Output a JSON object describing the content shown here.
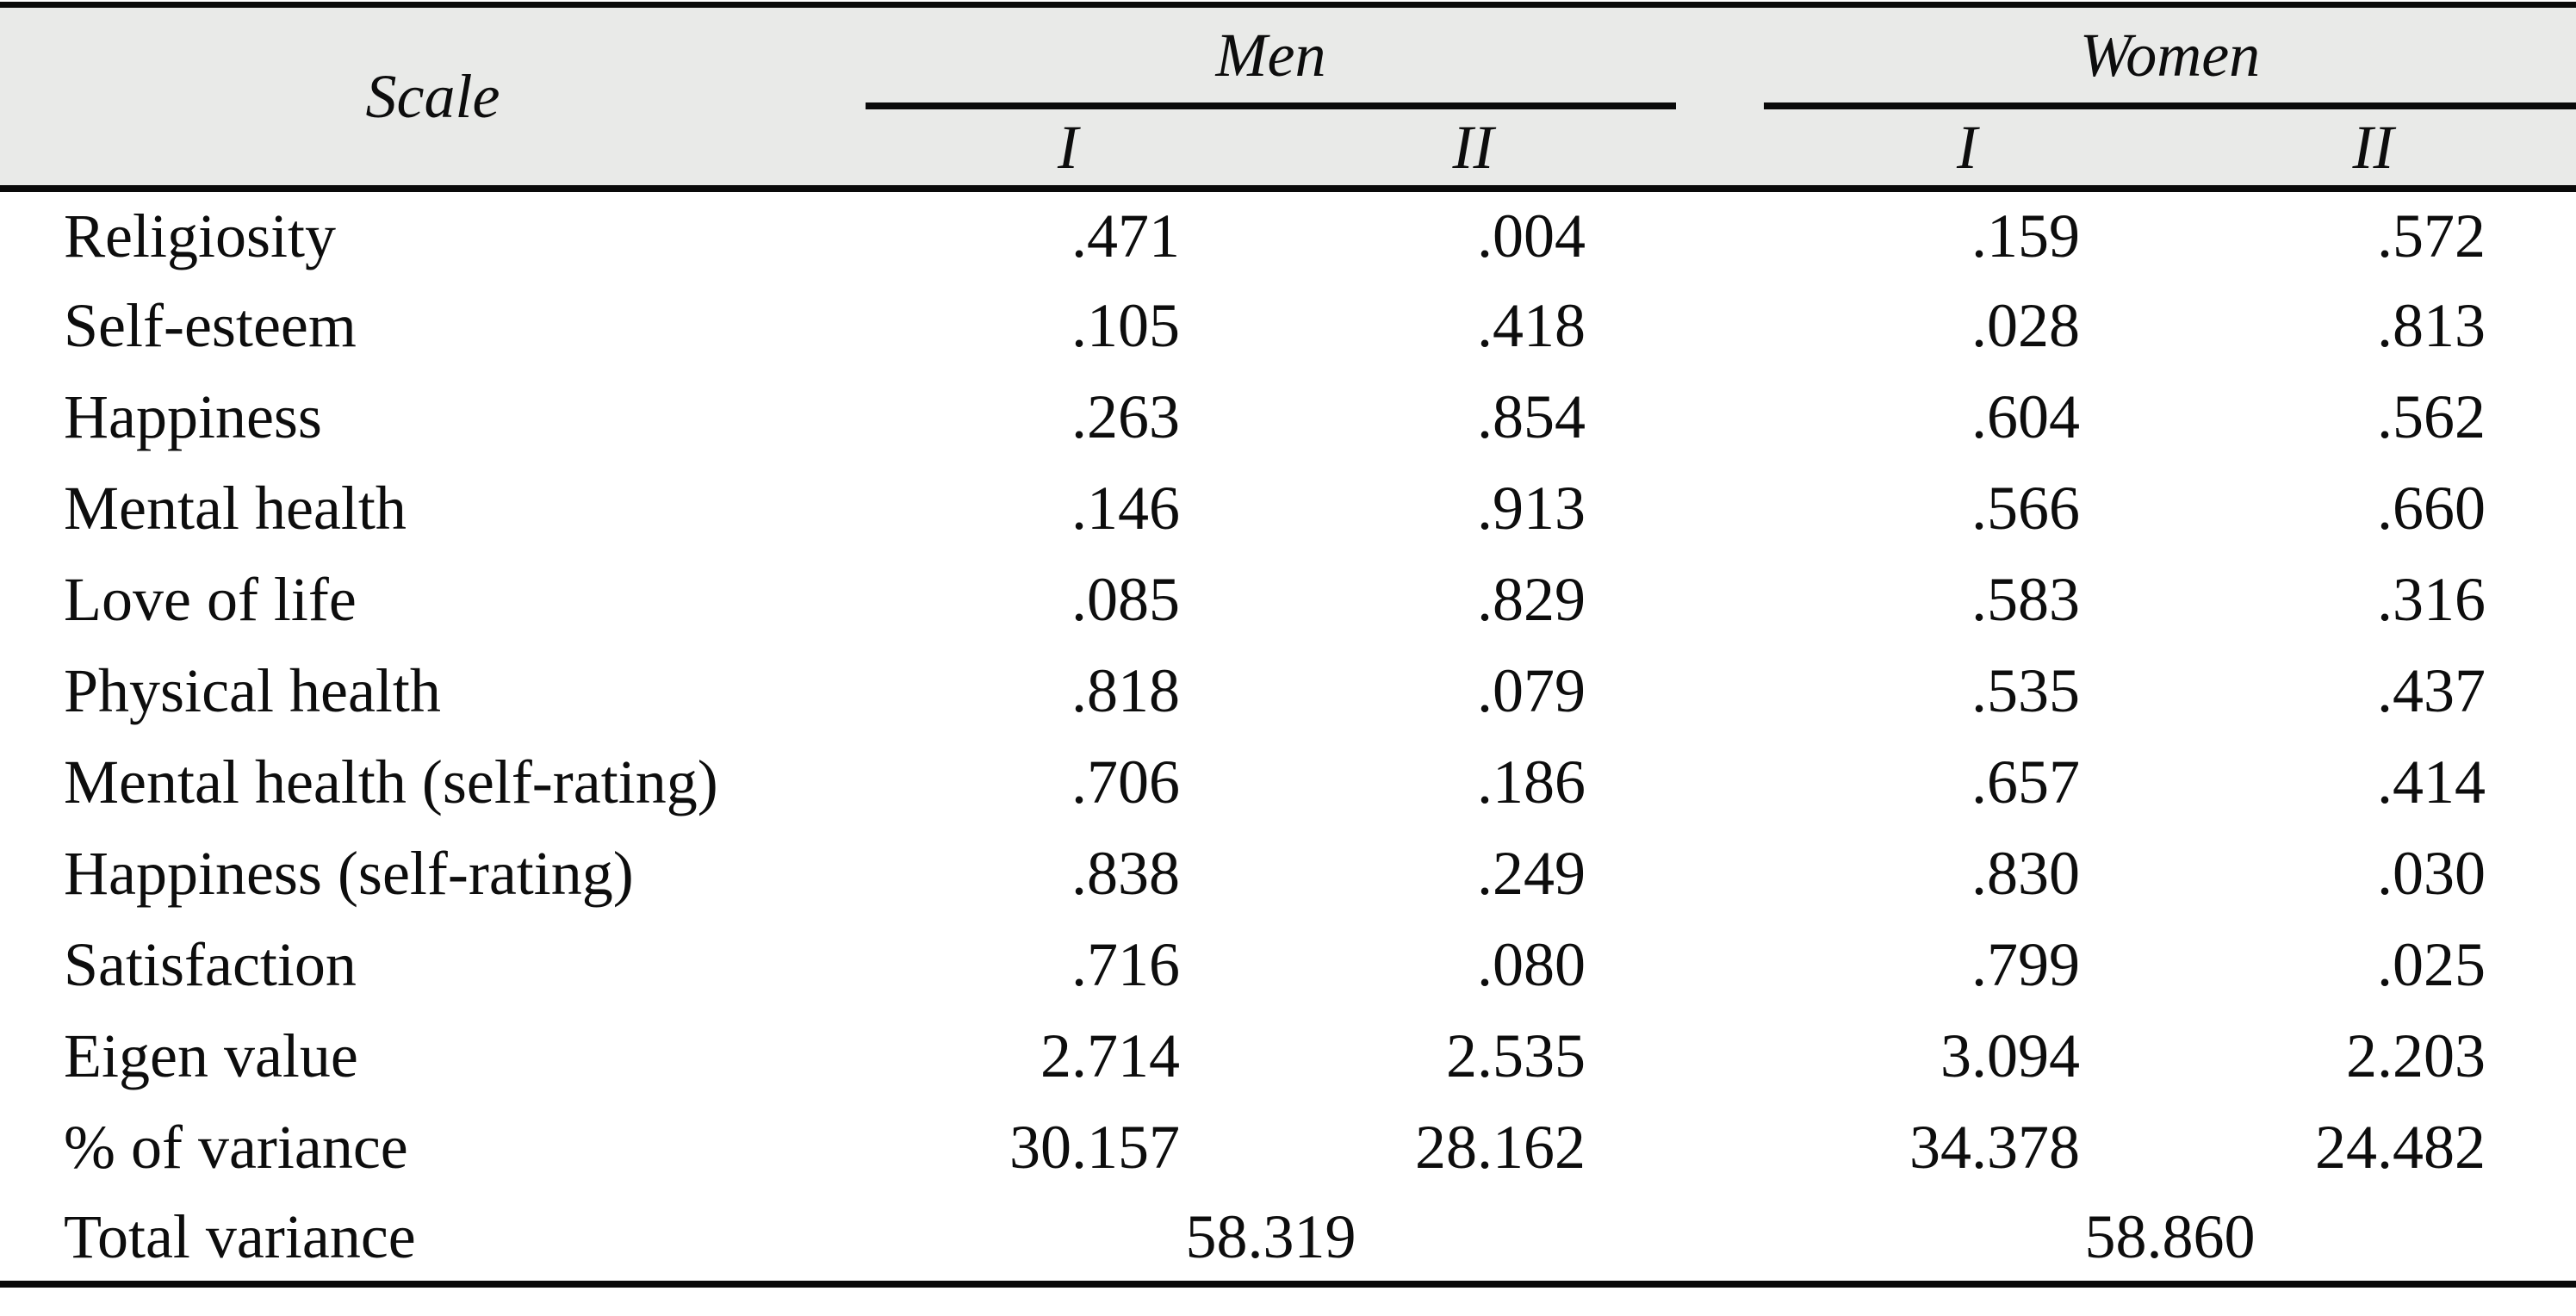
{
  "colors": {
    "header_bg": "#e9eae8",
    "rule": "#0a0a0a",
    "text": "#0d0d0d",
    "page_bg": "#ffffff"
  },
  "header": {
    "scale": "Scale",
    "men": "Men",
    "women": "Women",
    "men_sub": [
      "I",
      "II"
    ],
    "women_sub": [
      "I",
      "II"
    ]
  },
  "rows": [
    {
      "label": "Religiosity",
      "men_i": ".471",
      "men_ii": ".004",
      "women_i": ".159",
      "women_ii": ".572"
    },
    {
      "label": "Self-esteem",
      "men_i": ".105",
      "men_ii": ".418",
      "women_i": ".028",
      "women_ii": ".813"
    },
    {
      "label": "Happiness",
      "men_i": ".263",
      "men_ii": ".854",
      "women_i": ".604",
      "women_ii": ".562"
    },
    {
      "label": "Mental health",
      "men_i": ".146",
      "men_ii": ".913",
      "women_i": ".566",
      "women_ii": ".660"
    },
    {
      "label": "Love of life",
      "men_i": ".085",
      "men_ii": ".829",
      "women_i": ".583",
      "women_ii": ".316"
    },
    {
      "label": "Physical health",
      "men_i": ".818",
      "men_ii": ".079",
      "women_i": ".535",
      "women_ii": ".437"
    },
    {
      "label": "Mental health (self-rating)",
      "men_i": ".706",
      "men_ii": ".186",
      "women_i": ".657",
      "women_ii": ".414"
    },
    {
      "label": "Happiness (self-rating)",
      "men_i": ".838",
      "men_ii": ".249",
      "women_i": ".830",
      "women_ii": ".030"
    },
    {
      "label": "Satisfaction",
      "men_i": ".716",
      "men_ii": ".080",
      "women_i": ".799",
      "women_ii": ".025"
    },
    {
      "label": "Eigen value",
      "men_i": "2.714",
      "men_ii": "2.535",
      "women_i": "3.094",
      "women_ii": "2.203"
    },
    {
      "label": "% of variance",
      "men_i": "30.157",
      "men_ii": "28.162",
      "women_i": "34.378",
      "women_ii": "24.482"
    }
  ],
  "total_row": {
    "label": "Total variance",
    "men": "58.319",
    "women": "58.860"
  }
}
